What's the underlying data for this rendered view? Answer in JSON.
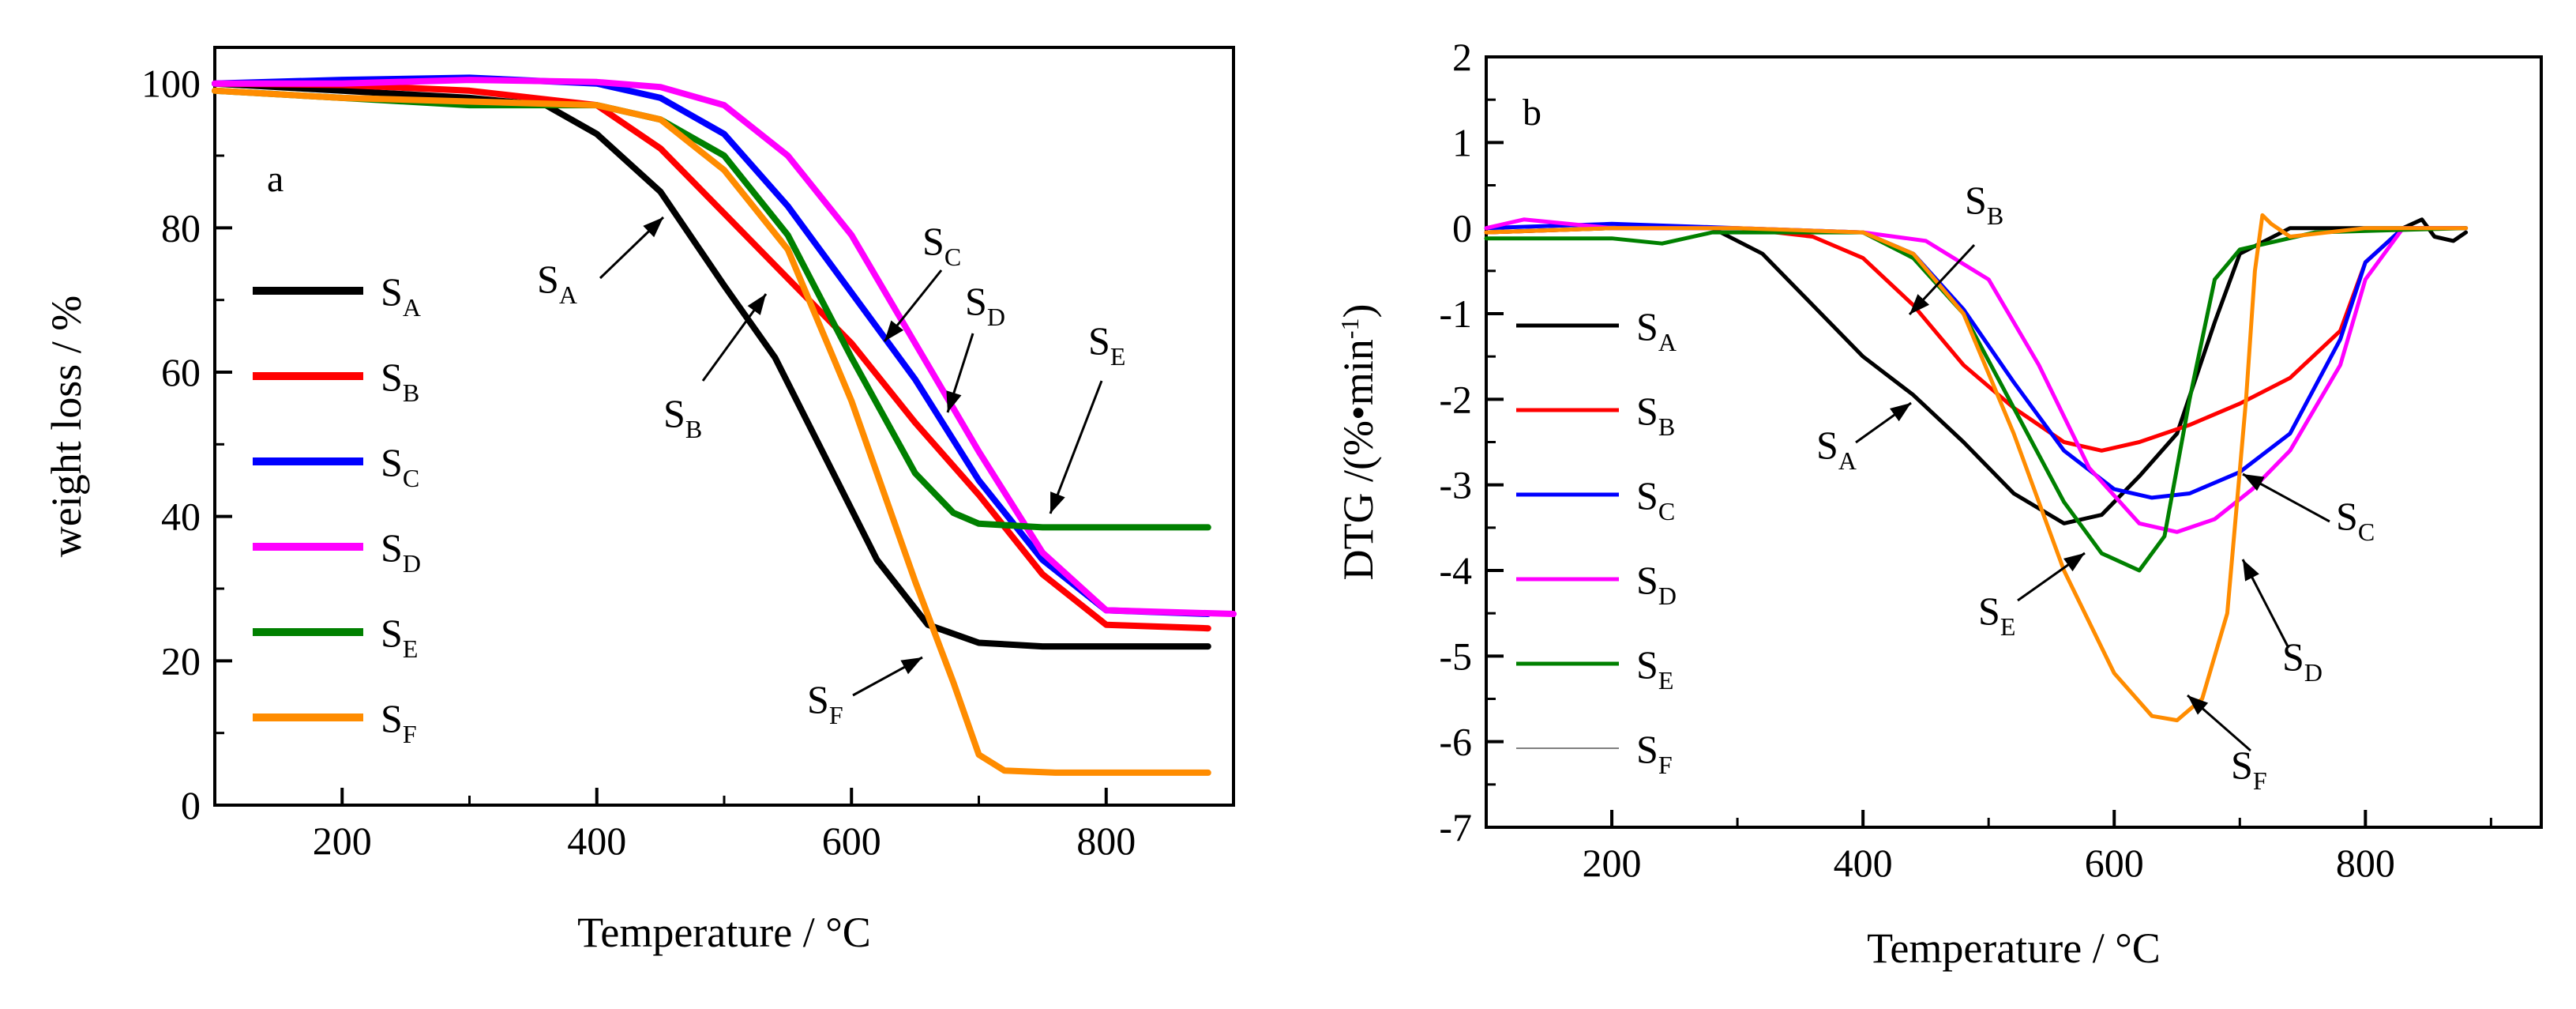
{
  "chart_data": [
    {
      "type": "line",
      "panel_label": "a",
      "xlabel": "Temperature / °C",
      "ylabel": "weight loss / %",
      "xlim": [
        100,
        900
      ],
      "ylim": [
        0,
        105
      ],
      "xticks": [
        200,
        400,
        600,
        800
      ],
      "yticks": [
        0,
        20,
        40,
        60,
        80,
        100
      ],
      "grid": false,
      "legend": "left",
      "series": [
        {
          "name": "S",
          "sub": "A",
          "color": "#000000",
          "x": [
            100,
            200,
            300,
            360,
            400,
            450,
            500,
            540,
            580,
            620,
            660,
            700,
            750,
            800,
            880
          ],
          "y": [
            100,
            99,
            98,
            97,
            93,
            85,
            72,
            62,
            48,
            34,
            25,
            22.5,
            22,
            22,
            22
          ]
        },
        {
          "name": "S",
          "sub": "B",
          "color": "#ff0000",
          "x": [
            100,
            200,
            300,
            400,
            450,
            500,
            550,
            600,
            650,
            700,
            750,
            800,
            880
          ],
          "y": [
            100,
            99.8,
            99,
            97,
            91,
            82,
            73,
            64,
            53,
            43,
            32,
            25,
            24.5
          ]
        },
        {
          "name": "S",
          "sub": "C",
          "color": "#0000ff",
          "x": [
            100,
            200,
            300,
            400,
            450,
            500,
            550,
            600,
            650,
            700,
            750,
            800,
            880
          ],
          "y": [
            100,
            100.5,
            100.8,
            100,
            98,
            93,
            83,
            71,
            59,
            45,
            34,
            27,
            26.5
          ]
        },
        {
          "name": "S",
          "sub": "D",
          "color": "#ff00ff",
          "x": [
            100,
            200,
            300,
            400,
            450,
            500,
            550,
            600,
            650,
            700,
            750,
            800,
            900
          ],
          "y": [
            100,
            100,
            100.5,
            100.2,
            99.5,
            97,
            90,
            79,
            64,
            49,
            35,
            27,
            26.5
          ]
        },
        {
          "name": "S",
          "sub": "E",
          "color": "#008000",
          "x": [
            100,
            200,
            300,
            400,
            450,
            500,
            550,
            600,
            650,
            680,
            700,
            750,
            800,
            880
          ],
          "y": [
            99,
            98,
            97,
            97,
            95,
            90,
            79,
            62,
            46,
            40.5,
            39,
            38.5,
            38.5,
            38.5
          ]
        },
        {
          "name": "S",
          "sub": "F",
          "color": "#ff8c00",
          "x": [
            100,
            200,
            300,
            400,
            450,
            500,
            550,
            600,
            650,
            680,
            700,
            720,
            760,
            880
          ],
          "y": [
            99,
            98,
            97.5,
            97,
            95,
            88,
            77,
            56,
            31,
            17,
            7,
            4.8,
            4.5,
            4.5
          ]
        }
      ],
      "annotations": [
        {
          "text": "S",
          "sub": "A"
        },
        {
          "text": "S",
          "sub": "B"
        },
        {
          "text": "S",
          "sub": "C"
        },
        {
          "text": "S",
          "sub": "D"
        },
        {
          "text": "S",
          "sub": "E"
        },
        {
          "text": "S",
          "sub": "F"
        }
      ]
    },
    {
      "type": "line",
      "panel_label": "b",
      "xlabel": "Temperature / °C",
      "ylabel": "DTG /(%•min",
      "ylabel_sup": "-1",
      "ylabel_tail": ")",
      "xlim": [
        100,
        940
      ],
      "ylim": [
        -7,
        2
      ],
      "xticks": [
        200,
        400,
        600,
        800
      ],
      "yticks": [
        -7,
        -6,
        -5,
        -4,
        -3,
        -2,
        -1,
        0,
        1,
        2
      ],
      "grid": false,
      "legend": "left",
      "series": [
        {
          "name": "S",
          "sub": "A",
          "color": "#000000",
          "width": 5,
          "x": [
            100,
            200,
            280,
            320,
            360,
            400,
            440,
            480,
            520,
            560,
            590,
            620,
            650,
            680,
            700,
            740,
            800,
            830,
            845,
            855,
            870,
            880
          ],
          "y": [
            -0.05,
            0,
            0,
            -0.3,
            -0.9,
            -1.5,
            -1.95,
            -2.5,
            -3.1,
            -3.45,
            -3.35,
            -2.9,
            -2.4,
            -1.1,
            -0.3,
            0,
            0,
            0,
            0.1,
            -0.1,
            -0.15,
            -0.05
          ]
        },
        {
          "name": "S",
          "sub": "B",
          "color": "#ff0000",
          "width": 5,
          "x": [
            100,
            200,
            300,
            360,
            400,
            440,
            480,
            520,
            560,
            590,
            620,
            660,
            700,
            740,
            780,
            800,
            830,
            880
          ],
          "y": [
            -0.05,
            0,
            0,
            -0.1,
            -0.35,
            -0.9,
            -1.6,
            -2.1,
            -2.5,
            -2.6,
            -2.5,
            -2.3,
            -2.05,
            -1.75,
            -1.2,
            -0.4,
            0,
            0
          ]
        },
        {
          "name": "S",
          "sub": "C",
          "color": "#0000ff",
          "width": 5,
          "x": [
            100,
            200,
            300,
            400,
            440,
            480,
            520,
            560,
            600,
            630,
            660,
            700,
            740,
            780,
            800,
            830,
            880
          ],
          "y": [
            0,
            0.05,
            0,
            -0.05,
            -0.3,
            -0.95,
            -1.8,
            -2.6,
            -3.05,
            -3.15,
            -3.1,
            -2.85,
            -2.4,
            -1.3,
            -0.4,
            0,
            0
          ]
        },
        {
          "name": "S",
          "sub": "D",
          "color": "#ff00ff",
          "width": 5,
          "x": [
            100,
            130,
            200,
            300,
            400,
            450,
            500,
            540,
            580,
            620,
            650,
            680,
            710,
            740,
            780,
            800,
            830,
            880
          ],
          "y": [
            0,
            0.1,
            0,
            0,
            -0.05,
            -0.15,
            -0.6,
            -1.6,
            -2.8,
            -3.45,
            -3.55,
            -3.4,
            -3.05,
            -2.6,
            -1.6,
            -0.6,
            0,
            0
          ]
        },
        {
          "name": "S",
          "sub": "E",
          "color": "#008000",
          "width": 5,
          "x": [
            100,
            200,
            240,
            280,
            400,
            440,
            480,
            520,
            560,
            590,
            620,
            640,
            660,
            680,
            700,
            760,
            880
          ],
          "y": [
            -0.12,
            -0.12,
            -0.18,
            -0.05,
            -0.05,
            -0.35,
            -1.0,
            -2.1,
            -3.2,
            -3.8,
            -4.0,
            -3.6,
            -2.0,
            -0.6,
            -0.25,
            -0.05,
            0
          ]
        },
        {
          "name": "S",
          "sub": "F",
          "color": "#ff8c00",
          "width": 5,
          "x": [
            100,
            200,
            300,
            400,
            440,
            480,
            520,
            560,
            600,
            630,
            650,
            670,
            690,
            705,
            712,
            718,
            725,
            740,
            800,
            880
          ],
          "y": [
            -0.05,
            0,
            0,
            -0.05,
            -0.3,
            -1.0,
            -2.4,
            -4.0,
            -5.2,
            -5.7,
            -5.75,
            -5.5,
            -4.5,
            -2.0,
            -0.5,
            0.15,
            0.05,
            -0.1,
            0,
            0
          ]
        }
      ],
      "legend_line_widths": [
        5,
        5,
        5,
        5,
        5,
        2
      ],
      "legend_colors_override": {
        "5": "#808080"
      },
      "annotations": [
        {
          "text": "S",
          "sub": "A"
        },
        {
          "text": "S",
          "sub": "B"
        },
        {
          "text": "S",
          "sub": "C"
        },
        {
          "text": "S",
          "sub": "D"
        },
        {
          "text": "S",
          "sub": "E"
        },
        {
          "text": "S",
          "sub": "F"
        }
      ]
    }
  ]
}
